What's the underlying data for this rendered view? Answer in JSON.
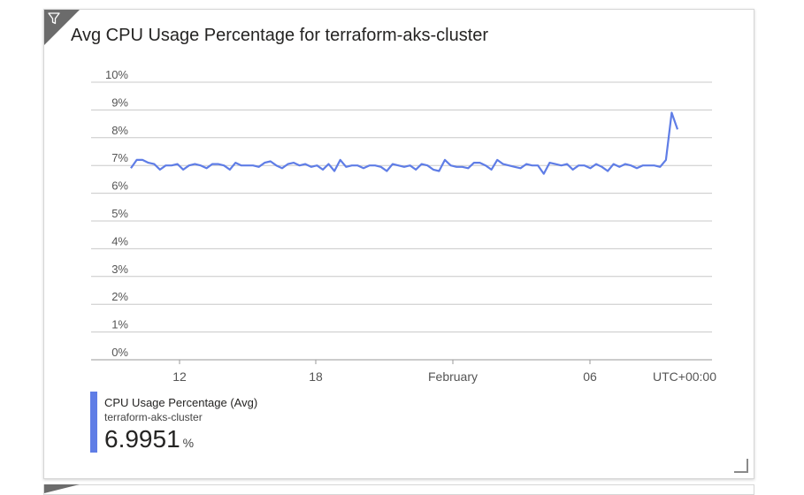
{
  "tile": {
    "title": "Avg CPU Usage Percentage for terraform-aks-cluster",
    "filter_icon": "filter-icon",
    "resize_icon": "resize-handle-icon"
  },
  "legend": {
    "series": "CPU Usage Percentage (Avg)",
    "resource": "terraform-aks-cluster",
    "value": "6.9951",
    "unit": "%",
    "color": "#5f7de6"
  },
  "chart_data": {
    "type": "line",
    "title": "Avg CPU Usage Percentage for terraform-aks-cluster",
    "xlabel": "",
    "ylabel": "",
    "ylim": [
      0,
      10
    ],
    "y_ticks": [
      "10%",
      "9%",
      "8%",
      "7%",
      "6%",
      "5%",
      "4%",
      "3%",
      "2%",
      "1%",
      "0%"
    ],
    "x_ticks": [
      "12",
      "18",
      "February",
      "06"
    ],
    "timezone_label": "UTC+00:00",
    "grid": true,
    "series": [
      {
        "name": "CPU Usage Percentage (Avg)",
        "color": "#5f7de6",
        "values": [
          6.9,
          7.2,
          7.2,
          7.1,
          7.05,
          6.85,
          7.0,
          7.0,
          7.05,
          6.85,
          7.0,
          7.05,
          7.0,
          6.9,
          7.05,
          7.05,
          7.0,
          6.85,
          7.1,
          7.0,
          7.0,
          7.0,
          6.95,
          7.1,
          7.15,
          7.0,
          6.9,
          7.05,
          7.1,
          7.0,
          7.05,
          6.95,
          7.0,
          6.85,
          7.05,
          6.8,
          7.2,
          6.95,
          7.0,
          7.0,
          6.9,
          7.0,
          7.0,
          6.95,
          6.8,
          7.05,
          7.0,
          6.95,
          7.0,
          6.85,
          7.05,
          7.0,
          6.85,
          6.8,
          7.2,
          7.0,
          6.95,
          6.95,
          6.9,
          7.1,
          7.1,
          7.0,
          6.85,
          7.2,
          7.05,
          7.0,
          6.95,
          6.9,
          7.05,
          7.0,
          7.0,
          6.7,
          7.1,
          7.05,
          7.0,
          7.05,
          6.85,
          7.0,
          7.0,
          6.9,
          7.05,
          6.95,
          6.8,
          7.05,
          6.95,
          7.05,
          7.0,
          6.9,
          7.0,
          7.0,
          7.0,
          6.95,
          7.2,
          8.9,
          8.3
        ]
      }
    ]
  }
}
